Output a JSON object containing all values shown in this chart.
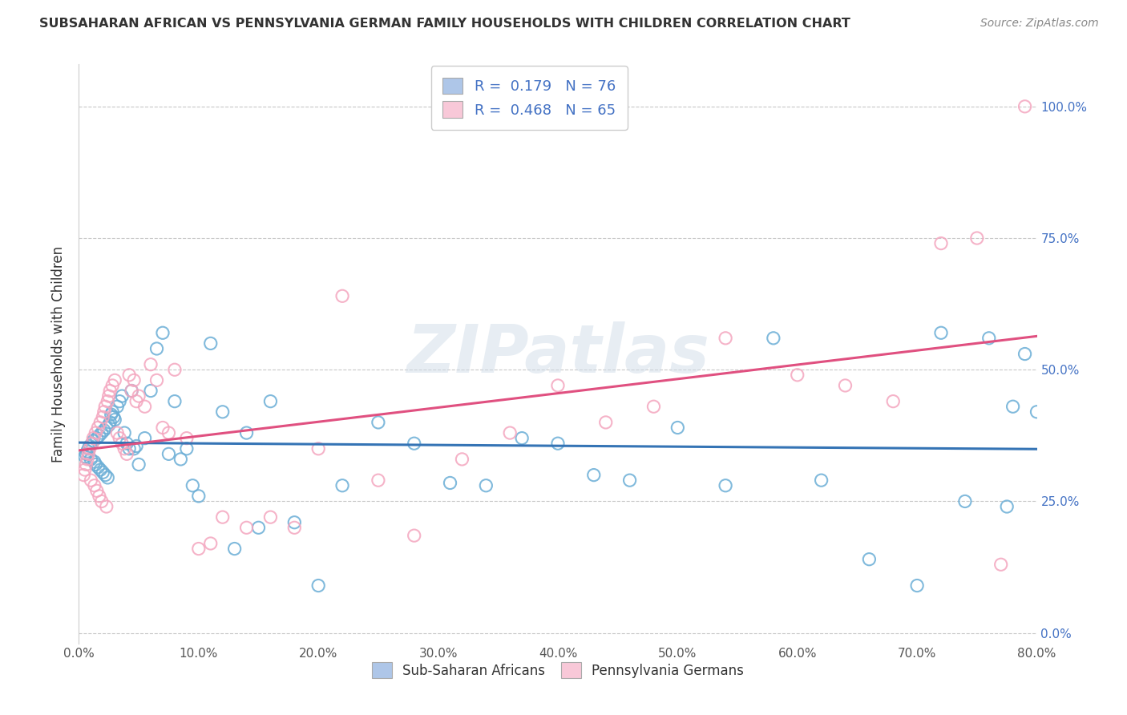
{
  "title": "SUBSAHARAN AFRICAN VS PENNSYLVANIA GERMAN FAMILY HOUSEHOLDS WITH CHILDREN CORRELATION CHART",
  "source": "Source: ZipAtlas.com",
  "ylabel": "Family Households with Children",
  "ytick_right": [
    "0.0%",
    "25.0%",
    "50.0%",
    "75.0%",
    "100.0%"
  ],
  "xlim": [
    0.0,
    0.8
  ],
  "ylim": [
    -0.02,
    1.08
  ],
  "watermark": "ZIPatlas",
  "legend_r1": "R =  0.179   N = 76",
  "legend_r2": "R =  0.468   N = 65",
  "blue_color": "#6baed6",
  "pink_color": "#f4a6bf",
  "blue_line_color": "#3574b5",
  "pink_line_color": "#e05080",
  "blue_fill": "#aec6e8",
  "pink_fill": "#f8c8d8",
  "grid_color": "#c8c8c8",
  "background_color": "#ffffff",
  "title_color": "#333333",
  "source_color": "#888888",
  "right_axis_color": "#4472c4",
  "legend_text_color": "#4472c4",
  "blue_R": 0.179,
  "pink_R": 0.468,
  "blue_scatter_x": [
    0.005,
    0.006,
    0.007,
    0.008,
    0.009,
    0.01,
    0.011,
    0.012,
    0.013,
    0.014,
    0.015,
    0.016,
    0.017,
    0.018,
    0.019,
    0.02,
    0.021,
    0.022,
    0.023,
    0.024,
    0.025,
    0.026,
    0.027,
    0.028,
    0.029,
    0.03,
    0.032,
    0.034,
    0.036,
    0.038,
    0.04,
    0.042,
    0.044,
    0.046,
    0.048,
    0.05,
    0.055,
    0.06,
    0.065,
    0.07,
    0.075,
    0.08,
    0.085,
    0.09,
    0.095,
    0.1,
    0.11,
    0.12,
    0.13,
    0.14,
    0.15,
    0.16,
    0.18,
    0.2,
    0.22,
    0.25,
    0.28,
    0.31,
    0.34,
    0.37,
    0.4,
    0.43,
    0.46,
    0.5,
    0.54,
    0.58,
    0.62,
    0.66,
    0.7,
    0.72,
    0.74,
    0.76,
    0.775,
    0.78,
    0.79,
    0.8
  ],
  "blue_scatter_y": [
    0.335,
    0.34,
    0.345,
    0.35,
    0.355,
    0.33,
    0.36,
    0.365,
    0.325,
    0.32,
    0.37,
    0.315,
    0.375,
    0.31,
    0.38,
    0.305,
    0.385,
    0.3,
    0.39,
    0.295,
    0.395,
    0.4,
    0.415,
    0.42,
    0.41,
    0.405,
    0.43,
    0.44,
    0.45,
    0.38,
    0.36,
    0.35,
    0.46,
    0.35,
    0.355,
    0.32,
    0.37,
    0.46,
    0.54,
    0.57,
    0.34,
    0.44,
    0.33,
    0.35,
    0.28,
    0.26,
    0.55,
    0.42,
    0.16,
    0.38,
    0.2,
    0.44,
    0.21,
    0.09,
    0.28,
    0.4,
    0.36,
    0.285,
    0.28,
    0.37,
    0.36,
    0.3,
    0.29,
    0.39,
    0.28,
    0.56,
    0.29,
    0.14,
    0.09,
    0.57,
    0.25,
    0.56,
    0.24,
    0.43,
    0.53,
    0.42
  ],
  "pink_scatter_x": [
    0.004,
    0.005,
    0.006,
    0.007,
    0.008,
    0.009,
    0.01,
    0.011,
    0.012,
    0.013,
    0.014,
    0.015,
    0.016,
    0.017,
    0.018,
    0.019,
    0.02,
    0.021,
    0.022,
    0.023,
    0.024,
    0.025,
    0.026,
    0.028,
    0.03,
    0.032,
    0.034,
    0.036,
    0.038,
    0.04,
    0.042,
    0.044,
    0.046,
    0.048,
    0.05,
    0.055,
    0.06,
    0.065,
    0.07,
    0.075,
    0.08,
    0.09,
    0.1,
    0.11,
    0.12,
    0.14,
    0.16,
    0.18,
    0.2,
    0.22,
    0.25,
    0.28,
    0.32,
    0.36,
    0.4,
    0.44,
    0.48,
    0.54,
    0.6,
    0.64,
    0.68,
    0.72,
    0.75,
    0.77,
    0.79
  ],
  "pink_scatter_y": [
    0.3,
    0.31,
    0.32,
    0.33,
    0.34,
    0.35,
    0.29,
    0.36,
    0.37,
    0.28,
    0.38,
    0.27,
    0.39,
    0.26,
    0.4,
    0.25,
    0.41,
    0.42,
    0.43,
    0.24,
    0.44,
    0.45,
    0.46,
    0.47,
    0.48,
    0.38,
    0.37,
    0.36,
    0.35,
    0.34,
    0.49,
    0.46,
    0.48,
    0.44,
    0.45,
    0.43,
    0.51,
    0.48,
    0.39,
    0.38,
    0.5,
    0.37,
    0.16,
    0.17,
    0.22,
    0.2,
    0.22,
    0.2,
    0.35,
    0.64,
    0.29,
    0.185,
    0.33,
    0.38,
    0.47,
    0.4,
    0.43,
    0.56,
    0.49,
    0.47,
    0.44,
    0.74,
    0.75,
    0.13,
    1.0
  ]
}
